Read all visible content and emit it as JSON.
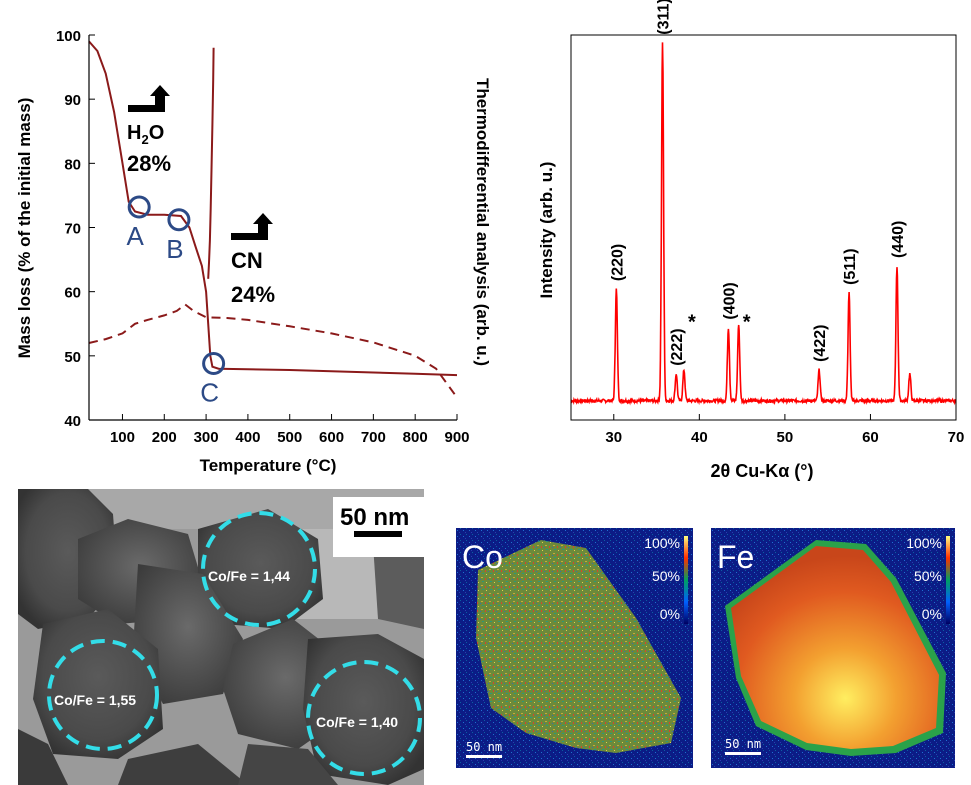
{
  "chart_data": [
    {
      "type": "line",
      "xlabel": "Temperature (°C)",
      "ylabel": "Mass loss (% of the initial mass)",
      "y2label": "Thermodifferential analysis (arb. u.)",
      "xlim": [
        20,
        900
      ],
      "ylim": [
        40,
        100
      ],
      "xticks": [
        "100",
        "200",
        "300",
        "400",
        "500",
        "600",
        "700",
        "800",
        "900"
      ],
      "yticks": [
        "40",
        "50",
        "60",
        "70",
        "80",
        "90",
        "100"
      ],
      "series": [
        {
          "style": "solid",
          "x": [
            20,
            40,
            60,
            80,
            100,
            115,
            130,
            160,
            200,
            240,
            260,
            275,
            290,
            300,
            305,
            310,
            315,
            330,
            400,
            500,
            600,
            700,
            800,
            900
          ],
          "y": [
            99,
            97.5,
            94,
            88,
            80,
            74,
            72.5,
            72,
            72,
            71.8,
            70,
            67,
            64,
            60,
            55,
            50,
            48.3,
            48,
            47.9,
            47.8,
            47.6,
            47.4,
            47.2,
            47.0
          ]
        },
        {
          "style": "dashed",
          "x": [
            20,
            60,
            100,
            130,
            160,
            200,
            230,
            250,
            270,
            300,
            350,
            400,
            500,
            600,
            700,
            800,
            850,
            900
          ],
          "y": [
            52,
            52.6,
            53.5,
            55,
            55.6,
            56.3,
            57,
            58,
            57,
            56,
            55.9,
            55.6,
            54.6,
            53.5,
            52.1,
            50,
            48,
            43.5
          ]
        },
        {
          "style": "solid",
          "x": [
            305,
            307,
            309,
            311,
            313,
            315,
            317,
            318
          ],
          "y": [
            62,
            64.5,
            68,
            73,
            79,
            86,
            93,
            98
          ]
        }
      ],
      "points": [
        {
          "label": "A",
          "x": 140,
          "y": 73.2
        },
        {
          "label": "B",
          "x": 235,
          "y": 71.2
        },
        {
          "label": "C",
          "x": 318,
          "y": 48.8
        }
      ],
      "annotations": [
        {
          "main": "H",
          "sub": "2",
          "rest": "O",
          "value": "28%"
        },
        {
          "main": "CN",
          "sub": "",
          "rest": "",
          "value": "24%"
        }
      ],
      "colors": {
        "line": "#8b1a1a"
      }
    },
    {
      "type": "line",
      "xlabel": "2θ Cu-Kα (°)",
      "ylabel": "Intensity (arb. u.)",
      "xlim": [
        25,
        70
      ],
      "xticks": [
        "30",
        "40",
        "50",
        "60",
        "70"
      ],
      "baseline": 0.05,
      "peaks": [
        {
          "x": 30.3,
          "h": 0.29,
          "label": "(220)"
        },
        {
          "x": 35.7,
          "h": 0.93,
          "label": "(311)"
        },
        {
          "x": 37.3,
          "h": 0.07,
          "label": "(222)"
        },
        {
          "x": 38.2,
          "h": 0.08,
          "label": ""
        },
        {
          "x": 43.4,
          "h": 0.19,
          "label": "(400)"
        },
        {
          "x": 44.6,
          "h": 0.2,
          "label": ""
        },
        {
          "x": 54.0,
          "h": 0.08,
          "label": "(422)"
        },
        {
          "x": 57.5,
          "h": 0.28,
          "label": "(511)"
        },
        {
          "x": 63.1,
          "h": 0.35,
          "label": "(440)"
        },
        {
          "x": 64.6,
          "h": 0.07,
          "label": ""
        }
      ],
      "stars": [
        {
          "x": 38.2,
          "label": "*"
        },
        {
          "x": 44.6,
          "label": "*"
        }
      ],
      "colors": {
        "line": "#ff0000"
      }
    }
  ],
  "tem": {
    "scale_label": "50 nm",
    "particles": [
      {
        "label": "Co/Fe = 1,44"
      },
      {
        "label": "Co/Fe = 1,55"
      },
      {
        "label": "Co/Fe = 1,40"
      }
    ],
    "circle_color": "#33dde8"
  },
  "maps": [
    {
      "element": "Co",
      "scale_label": "50 nm",
      "colorbar": [
        "100%",
        "50%",
        "0%"
      ]
    },
    {
      "element": "Fe",
      "scale_label": "50 nm",
      "colorbar": [
        "100%",
        "50%",
        "0%"
      ]
    }
  ]
}
